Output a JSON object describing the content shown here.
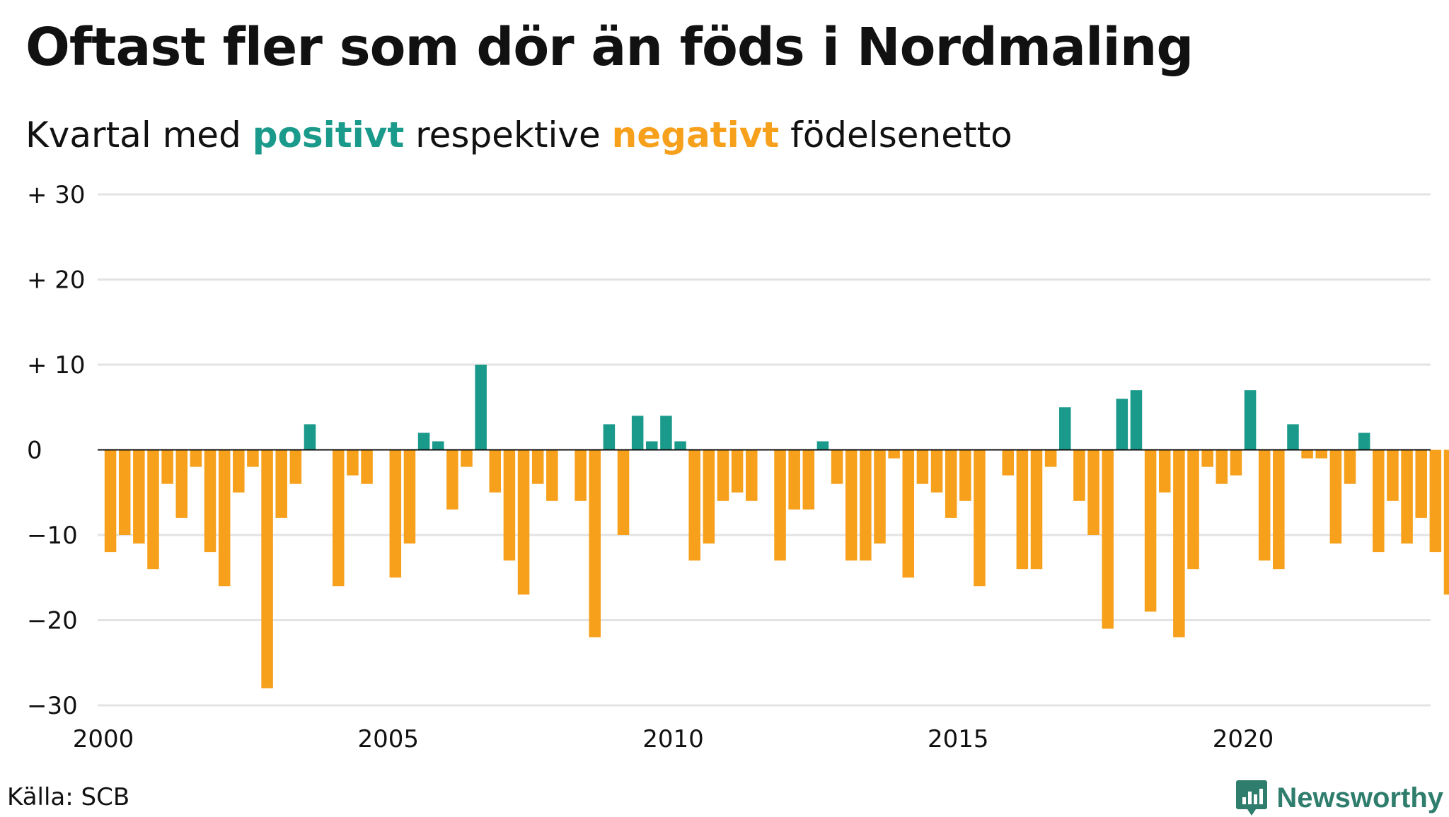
{
  "title": "Oftast fler som dör än föds i Nordmaling",
  "subtitle": {
    "prefix": "Kvartal med ",
    "positive": "positivt",
    "middle": " respektive ",
    "negative": "negativt",
    "suffix": " födelsenetto"
  },
  "source": "Källa: SCB",
  "brand": "Newsworthy",
  "colors": {
    "positive": "#1a9a8a",
    "negative": "#f6a01c",
    "grid": "#e3e3e3",
    "text": "#111111",
    "brand": "#2f7d6c"
  },
  "chart_data": {
    "type": "bar",
    "title": "",
    "xlabel": "",
    "ylabel": "",
    "ylim": [
      -30,
      30
    ],
    "y_ticks": [
      30,
      20,
      10,
      0,
      -10,
      -20,
      -30
    ],
    "y_tick_labels": [
      "+ 30",
      "+ 20",
      "+ 10",
      "0",
      "−10",
      "−20",
      "−30"
    ],
    "x_ticks": [
      2000,
      2005,
      2010,
      2015,
      2020
    ],
    "x_tick_labels": [
      "2000",
      "2005",
      "2010",
      "2015",
      "2020"
    ],
    "grid": true,
    "legend": "none",
    "categories": [
      "2000 K1",
      "2000 K2",
      "2000 K3",
      "2000 K4",
      "2001 K1",
      "2001 K2",
      "2001 K3",
      "2001 K4",
      "2002 K1",
      "2002 K2",
      "2002 K3",
      "2002 K4",
      "2003 K1",
      "2003 K2",
      "2003 K3",
      "2003 K4",
      "2004 K1",
      "2004 K2",
      "2004 K3",
      "2004 K4",
      "2005 K1",
      "2005 K2",
      "2005 K3",
      "2005 K4",
      "2006 K1",
      "2006 K2",
      "2006 K3",
      "2006 K4",
      "2007 K1",
      "2007 K2",
      "2007 K3",
      "2007 K4",
      "2008 K1",
      "2008 K2",
      "2008 K3",
      "2008 K4",
      "2009 K1",
      "2009 K2",
      "2009 K3",
      "2009 K4",
      "2010 K1",
      "2010 K2",
      "2010 K3",
      "2010 K4",
      "2011 K1",
      "2011 K2",
      "2011 K3",
      "2011 K4",
      "2012 K1",
      "2012 K2",
      "2012 K3",
      "2012 K4",
      "2013 K1",
      "2013 K2",
      "2013 K3",
      "2013 K4",
      "2014 K1",
      "2014 K2",
      "2014 K3",
      "2014 K4",
      "2015 K1",
      "2015 K2",
      "2015 K3",
      "2015 K4",
      "2016 K1",
      "2016 K2",
      "2016 K3",
      "2016 K4",
      "2017 K1",
      "2017 K2",
      "2017 K3",
      "2017 K4",
      "2018 K1",
      "2018 K2",
      "2018 K3",
      "2018 K4",
      "2019 K1",
      "2019 K2",
      "2019 K3",
      "2019 K4",
      "2020 K1",
      "2020 K2",
      "2020 K3",
      "2020 K4",
      "2021 K1",
      "2021 K2",
      "2021 K3",
      "2021 K4",
      "2022 K1",
      "2022 K2",
      "2022 K3",
      "2022 K4",
      "2023 K1",
      "2023 K2",
      "2023 K3",
      "2023 K4"
    ],
    "values": [
      -12,
      -10,
      -11,
      -14,
      -4,
      -8,
      -2,
      -12,
      -16,
      -5,
      -2,
      -28,
      -8,
      -4,
      3,
      0,
      -16,
      -3,
      -4,
      0,
      -15,
      -11,
      2,
      1,
      -7,
      -2,
      10,
      -5,
      -13,
      -17,
      -4,
      -6,
      0,
      -6,
      -22,
      3,
      -10,
      4,
      1,
      4,
      1,
      -13,
      -11,
      -6,
      -5,
      -6,
      0,
      -13,
      -7,
      -7,
      1,
      -4,
      -13,
      -13,
      -11,
      -1,
      -15,
      -4,
      -5,
      -8,
      -6,
      -16,
      0,
      -3,
      -14,
      -14,
      -2,
      5,
      -6,
      -10,
      -21,
      6,
      7,
      -19,
      -5,
      -22,
      -14,
      -2,
      -4,
      -3,
      7,
      -13,
      -14,
      3,
      -1,
      -1,
      -11,
      -4,
      2,
      -12,
      -6,
      -11,
      -8,
      -12,
      -17,
      0
    ]
  }
}
